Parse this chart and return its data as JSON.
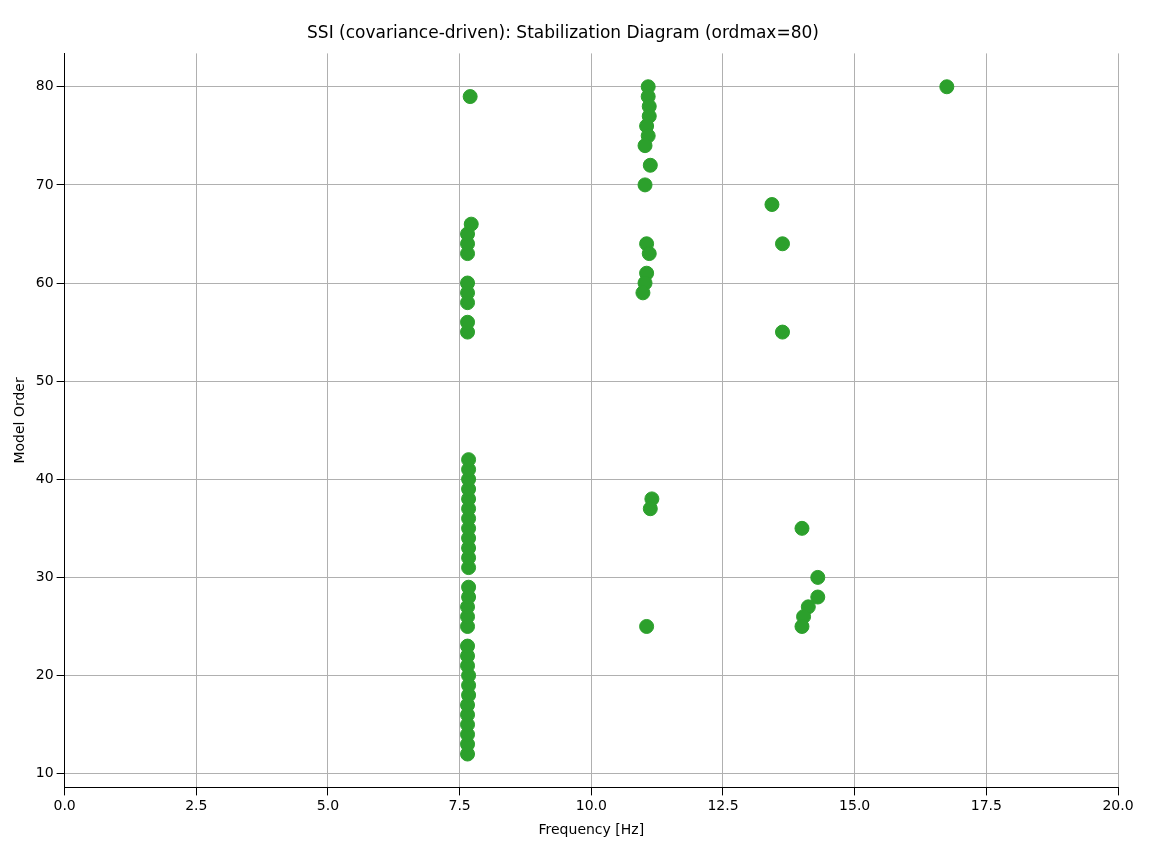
{
  "chart_data": {
    "type": "scatter",
    "title": "SSI (covariance-driven): Stabilization Diagram (ordmax=80)",
    "xlabel": "Frequency [Hz]",
    "ylabel": "Model Order",
    "x": [
      7.65,
      7.65,
      7.65,
      7.65,
      7.65,
      7.65,
      7.67,
      7.67,
      7.67,
      7.65,
      7.65,
      7.65,
      7.65,
      7.65,
      7.65,
      7.67,
      7.67,
      7.67,
      7.67,
      7.67,
      7.67,
      7.67,
      7.67,
      7.67,
      7.67,
      7.67,
      7.67,
      7.67,
      7.67,
      7.65,
      7.65,
      7.65,
      7.65,
      7.65,
      7.65,
      7.65,
      7.65,
      7.72,
      7.7,
      11.08,
      11.08,
      11.1,
      11.1,
      11.05,
      11.08,
      11.02,
      11.12,
      11.02,
      11.05,
      11.1,
      11.05,
      11.02,
      10.98,
      11.15,
      11.12,
      11.05,
      13.43,
      13.63,
      13.63,
      14.0,
      14.3,
      14.3,
      14.12,
      14.03,
      14.0,
      16.75
    ],
    "values": [
      12,
      13,
      14,
      15,
      16,
      17,
      18,
      19,
      20,
      21,
      22,
      23,
      25,
      26,
      27,
      28,
      29,
      31,
      32,
      33,
      34,
      35,
      36,
      37,
      38,
      39,
      40,
      41,
      42,
      55,
      56,
      58,
      59,
      60,
      63,
      64,
      65,
      66,
      79,
      80,
      79,
      78,
      77,
      76,
      75,
      74,
      72,
      70,
      64,
      63,
      61,
      60,
      59,
      38,
      37,
      25,
      68,
      64,
      55,
      35,
      30,
      28,
      27,
      26,
      25,
      80
    ],
    "color": "#2ca02c",
    "marker": "circle",
    "grid": true,
    "xlim": [
      0,
      20
    ],
    "xticks": [
      {
        "value": 0,
        "label": "0.0"
      },
      2.5,
      {
        "value": 5,
        "label": "5.0"
      },
      7.5,
      {
        "value": 10,
        "label": "10.0"
      },
      12.5,
      {
        "value": 15,
        "label": "15.0"
      },
      17.5,
      {
        "value": 20,
        "label": "20.0"
      }
    ],
    "ylim": [
      8.6,
      83.4
    ],
    "yticks": [
      10,
      20,
      30,
      40,
      50,
      60,
      70,
      80
    ]
  }
}
